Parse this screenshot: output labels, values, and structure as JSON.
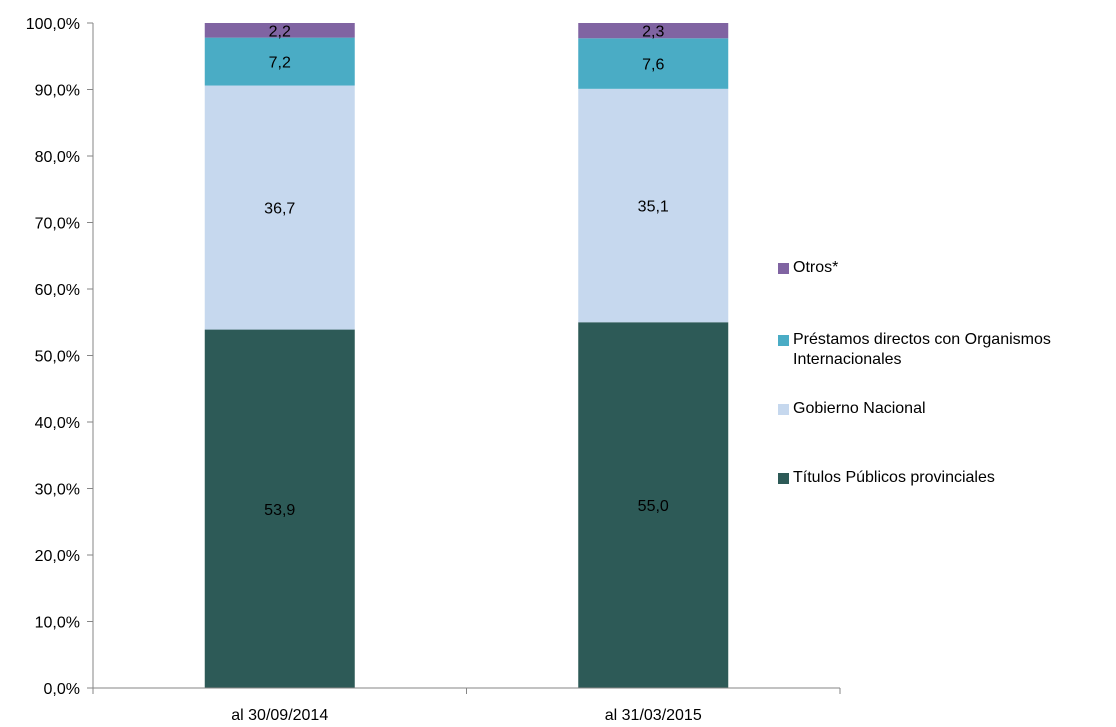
{
  "chart_data": {
    "type": "bar",
    "stacked": true,
    "categories": [
      "al 30/09/2014",
      "al 31/03/2015"
    ],
    "series": [
      {
        "name": "Títulos Públicos provinciales",
        "values": [
          53.9,
          55.0
        ],
        "labels": [
          "53,9",
          "55,0"
        ],
        "color": "#2d5a57",
        "label_color": "#000000"
      },
      {
        "name": "Gobierno Nacional",
        "values": [
          36.7,
          35.1
        ],
        "labels": [
          "36,7",
          "35,1"
        ],
        "color": "#c6d8ee",
        "label_color": "#000000"
      },
      {
        "name": "Préstamos directos con Organismos Internacionales",
        "values": [
          7.2,
          7.6
        ],
        "labels": [
          "7,2",
          "7,6"
        ],
        "color": "#4aacc5",
        "label_color": "#000000"
      },
      {
        "name": "Otros*",
        "values": [
          2.2,
          2.3
        ],
        "labels": [
          "2,2",
          "2,3"
        ],
        "color": "#8064a2",
        "label_color": "#000000"
      }
    ],
    "ylim": [
      0,
      100
    ],
    "yticks": [
      0,
      10,
      20,
      30,
      40,
      50,
      60,
      70,
      80,
      90,
      100
    ],
    "ytick_labels": [
      "0,0%",
      "10,0%",
      "20,0%",
      "30,0%",
      "40,0%",
      "50,0%",
      "60,0%",
      "70,0%",
      "80,0%",
      "90,0%",
      "100,0%"
    ],
    "grid": false,
    "legend_position": "right",
    "legend_order": [
      "Otros*",
      "Préstamos directos con Organismos Internacionales",
      "Gobierno Nacional",
      "Títulos Públicos provinciales"
    ]
  }
}
